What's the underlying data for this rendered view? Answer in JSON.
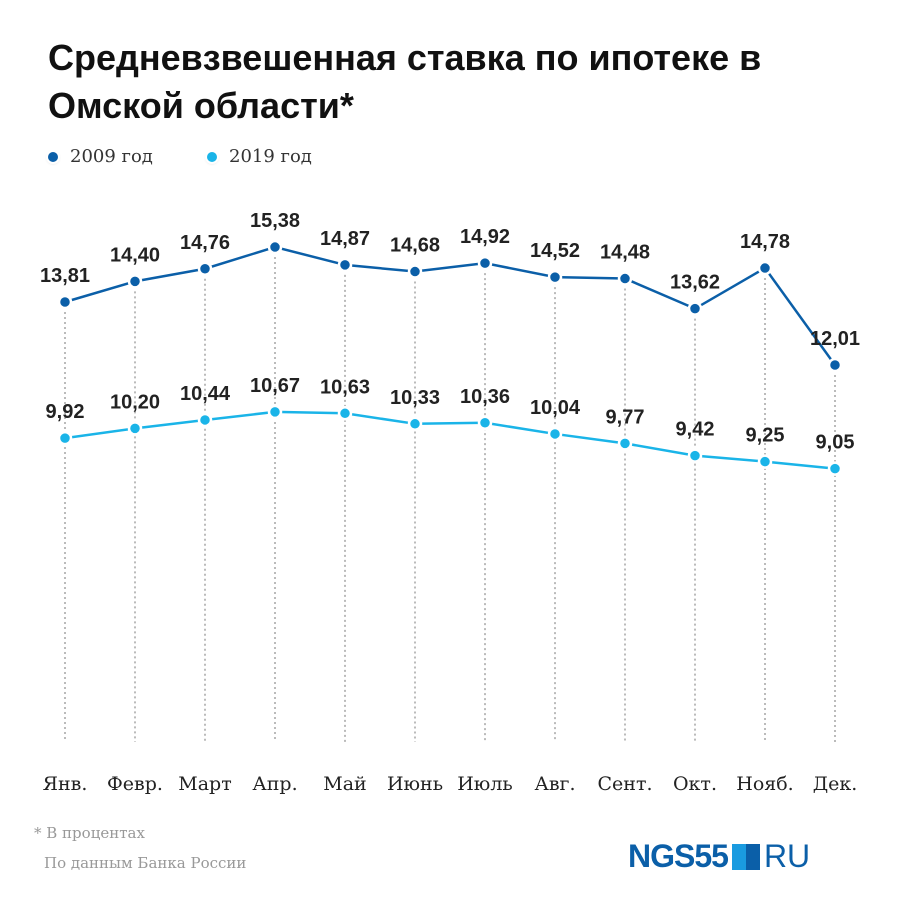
{
  "title": "Средневзвешенная ставка по ипотеке в Омской области*",
  "footnote": "* В процентах",
  "source": "По данным Банка России",
  "logo": {
    "bold": "NGS55",
    "light": "RU"
  },
  "colors": {
    "2009": "#0b5fa8",
    "2019": "#1ab4e8"
  },
  "chart_data": {
    "type": "line",
    "categories": [
      "Янв.",
      "Февр.",
      "Март",
      "Апр.",
      "Май",
      "Июнь",
      "Июль",
      "Авг.",
      "Сент.",
      "Окт.",
      "Нояб.",
      "Дек."
    ],
    "series": [
      {
        "name": "2009 год",
        "values": [
          13.81,
          14.4,
          14.76,
          15.38,
          14.87,
          14.68,
          14.92,
          14.52,
          14.48,
          13.62,
          14.78,
          12.01
        ],
        "labels": [
          "13,81",
          "14,40",
          "14,76",
          "15,38",
          "14,87",
          "14,68",
          "14,92",
          "14,52",
          "14,48",
          "13,62",
          "14,78",
          "12,01"
        ]
      },
      {
        "name": "2019 год",
        "values": [
          9.92,
          10.2,
          10.44,
          10.67,
          10.63,
          10.33,
          10.36,
          10.04,
          9.77,
          9.42,
          9.25,
          9.05
        ],
        "labels": [
          "9,92",
          "10,20",
          "10,44",
          "10,67",
          "10,63",
          "10,33",
          "10,36",
          "10,04",
          "9,77",
          "9,42",
          "9,25",
          "9,05"
        ]
      }
    ],
    "legend": "top-left",
    "grid": "vertical dotted"
  }
}
